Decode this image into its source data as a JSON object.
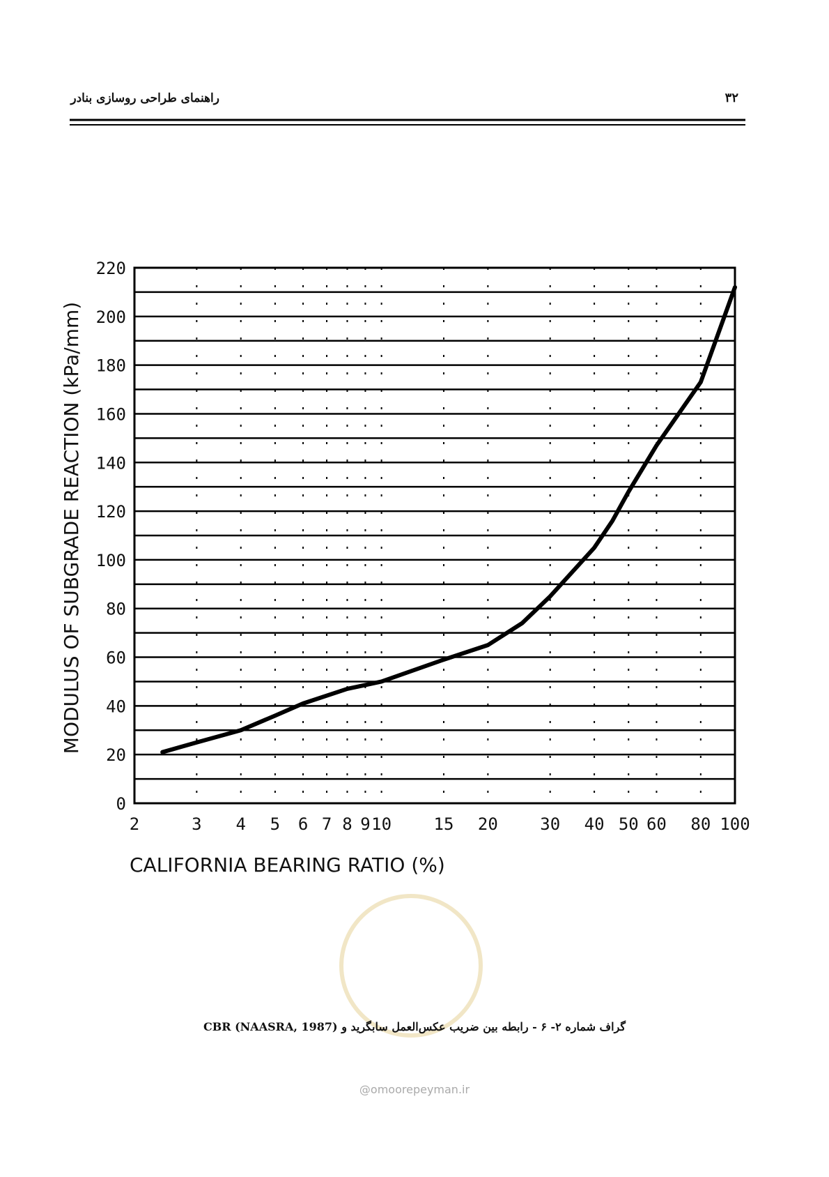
{
  "header": {
    "title": "راهنمای طراحی روسازی بنادر",
    "page_number": "۳۲"
  },
  "chart_data": {
    "type": "line",
    "xlabel": "CALIFORNIA BEARING RATIO (%)",
    "ylabel": "MODULUS OF SUBGRADE REACTION (kPa/mm)",
    "xscale": "log",
    "xlim": [
      2,
      100
    ],
    "xticks": [
      2,
      3,
      4,
      5,
      6,
      7,
      8,
      9,
      10,
      15,
      20,
      30,
      40,
      50,
      60,
      80,
      100
    ],
    "ylim": [
      0,
      220
    ],
    "yticks": [
      0,
      20,
      40,
      60,
      80,
      100,
      120,
      140,
      160,
      180,
      200,
      220
    ],
    "grid": true,
    "x": [
      2.4,
      3,
      4,
      5,
      6,
      8,
      10,
      15,
      20,
      25,
      30,
      40,
      45,
      50,
      60,
      80,
      100
    ],
    "series": [
      {
        "color": "#000000",
        "values": [
          21,
          25,
          30,
          36,
          41,
          47,
          50,
          59,
          65,
          74,
          85,
          105,
          116,
          128,
          147,
          173,
          212
        ]
      }
    ]
  },
  "caption": "گراف شماره ۲- ۶ - رابطه بین ضریب عکس‌العمل سابگرید و CBR (NAASRA, 1987)",
  "watermark": "@omoorepeyman.ir"
}
